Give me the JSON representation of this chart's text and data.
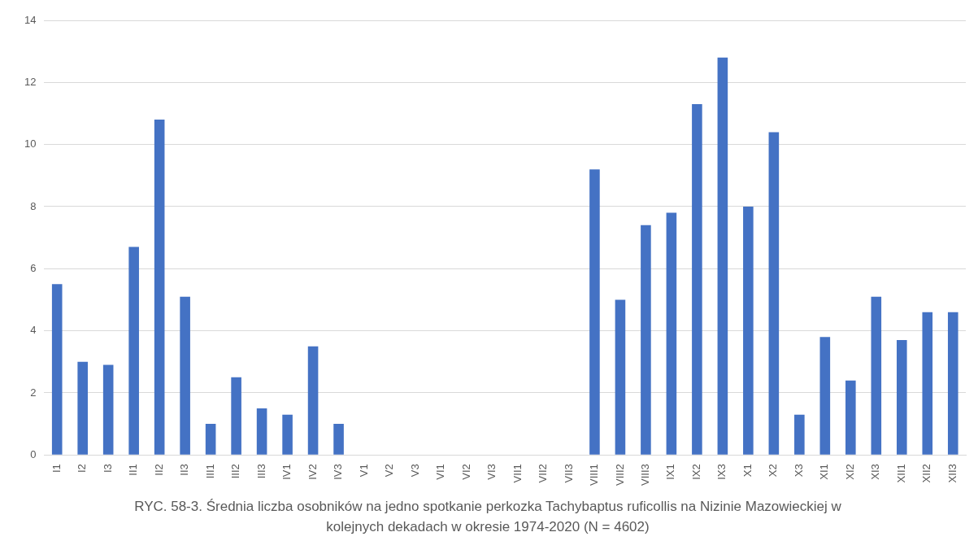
{
  "chart_data": {
    "type": "bar",
    "title": "RYC. 58-3. Średnia liczba osobników na jedno spotkanie perkozka Tachybaptus ruficollis na Nizinie Mazowieckiej w kolejnych dekadach w okresie 1974-2020 (N = 4602)",
    "categories": [
      "I1",
      "I2",
      "I3",
      "II1",
      "II2",
      "II3",
      "III1",
      "III2",
      "III3",
      "IV1",
      "IV2",
      "IV3",
      "V1",
      "V2",
      "V3",
      "VI1",
      "VI2",
      "VI3",
      "VII1",
      "VII2",
      "VII3",
      "VIII1",
      "VIII2",
      "VIII3",
      "IX1",
      "IX2",
      "IX3",
      "X1",
      "X2",
      "X3",
      "XI1",
      "XI2",
      "XI3",
      "XII1",
      "XII2",
      "XII3"
    ],
    "values": [
      5.5,
      3.0,
      2.9,
      6.7,
      10.8,
      5.1,
      1.0,
      2.5,
      1.5,
      1.3,
      3.5,
      1.0,
      0,
      0,
      0,
      0,
      0,
      0,
      0,
      0,
      0,
      9.2,
      5.0,
      7.4,
      7.8,
      11.3,
      12.8,
      8.0,
      10.4,
      1.3,
      3.8,
      2.4,
      5.1,
      3.7,
      4.6,
      4.6
    ],
    "color": "#4472c4",
    "ylim": [
      0,
      14
    ],
    "yticks": [
      0,
      2,
      4,
      6,
      8,
      10,
      12,
      14
    ],
    "grid": "y"
  }
}
